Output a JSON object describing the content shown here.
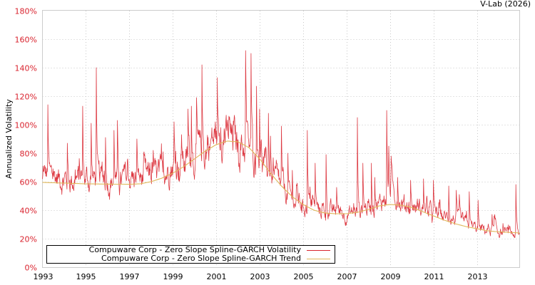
{
  "credit": "V-Lab (2026)",
  "chart_data": {
    "type": "line",
    "title": "",
    "xlabel": "",
    "ylabel": "Annualized Volatility",
    "xlim": [
      1993.0,
      2014.97
    ],
    "ylim": [
      0,
      180
    ],
    "grid": true,
    "legend_position": "lower-left",
    "x_ticks": [
      "1993",
      "1995",
      "1997",
      "1999",
      "2001",
      "2003",
      "2005",
      "2007",
      "2009",
      "2011",
      "2013"
    ],
    "y_ticks": [
      "0%",
      "20%",
      "40%",
      "60%",
      "80%",
      "100%",
      "120%",
      "140%",
      "160%",
      "180%"
    ],
    "colors": {
      "volatility": "#d9232e",
      "trend": "#e0b85a",
      "ytick": "#d9232e",
      "grid": "#c8c8c8",
      "axis": "#cccccc"
    },
    "series": [
      {
        "name": "Compuware Corp - Zero Slope Spline-GARCH Volatility",
        "baseline": [
          [
            1993.0,
            58
          ],
          [
            1993.5,
            56
          ],
          [
            1994.0,
            55
          ],
          [
            1994.5,
            54
          ],
          [
            1995.0,
            55
          ],
          [
            1995.5,
            55
          ],
          [
            1996.0,
            54
          ],
          [
            1996.5,
            54
          ],
          [
            1997.0,
            54
          ],
          [
            1997.5,
            55
          ],
          [
            1998.0,
            56
          ],
          [
            1998.5,
            58
          ],
          [
            1999.0,
            63
          ],
          [
            1999.5,
            66
          ],
          [
            2000.0,
            70
          ],
          [
            2000.5,
            73
          ],
          [
            2001.0,
            80
          ],
          [
            2001.5,
            80
          ],
          [
            2002.0,
            76
          ],
          [
            2002.5,
            73
          ],
          [
            2003.0,
            70
          ],
          [
            2003.5,
            55
          ],
          [
            2004.0,
            48
          ],
          [
            2004.5,
            42
          ],
          [
            2005.0,
            39
          ],
          [
            2005.5,
            37
          ],
          [
            2006.0,
            35
          ],
          [
            2006.5,
            34
          ],
          [
            2007.0,
            33
          ],
          [
            2007.5,
            34
          ],
          [
            2008.0,
            38
          ],
          [
            2008.5,
            39
          ],
          [
            2009.0,
            47
          ],
          [
            2009.5,
            40
          ],
          [
            2010.0,
            38
          ],
          [
            2010.5,
            36
          ],
          [
            2011.0,
            33
          ],
          [
            2011.5,
            31
          ],
          [
            2012.0,
            30
          ],
          [
            2012.5,
            27
          ],
          [
            2013.0,
            24
          ],
          [
            2013.5,
            23
          ],
          [
            2014.0,
            22
          ],
          [
            2014.5,
            21
          ],
          [
            2014.97,
            19.5
          ]
        ],
        "spikes": [
          [
            1993.25,
            114
          ],
          [
            1993.03,
            71
          ],
          [
            1994.15,
            87
          ],
          [
            1994.85,
            113
          ],
          [
            1995.25,
            101
          ],
          [
            1995.48,
            140
          ],
          [
            1995.9,
            91
          ],
          [
            1996.3,
            96
          ],
          [
            1996.45,
            103
          ],
          [
            1997.35,
            90
          ],
          [
            1998.1,
            82
          ],
          [
            1998.55,
            81
          ],
          [
            1999.05,
            102
          ],
          [
            1999.4,
            93
          ],
          [
            1999.7,
            111
          ],
          [
            1999.85,
            113
          ],
          [
            2000.1,
            119
          ],
          [
            2000.35,
            142
          ],
          [
            2000.95,
            102
          ],
          [
            2001.05,
            133
          ],
          [
            2001.2,
            98
          ],
          [
            2001.55,
            92
          ],
          [
            2002.35,
            152
          ],
          [
            2002.6,
            150
          ],
          [
            2002.85,
            127
          ],
          [
            2003.0,
            111
          ],
          [
            2003.4,
            108
          ],
          [
            2003.5,
            92
          ],
          [
            2004.0,
            99
          ],
          [
            2004.3,
            80
          ],
          [
            2004.5,
            68
          ],
          [
            2005.2,
            96
          ],
          [
            2005.55,
            73
          ],
          [
            2006.05,
            79
          ],
          [
            2006.55,
            56
          ],
          [
            2007.5,
            105
          ],
          [
            2007.75,
            73
          ],
          [
            2008.15,
            73
          ],
          [
            2008.3,
            63
          ],
          [
            2008.85,
            110
          ],
          [
            2008.95,
            85
          ],
          [
            2009.05,
            78
          ],
          [
            2009.35,
            63
          ],
          [
            2009.95,
            61
          ],
          [
            2010.55,
            62
          ],
          [
            2011.0,
            61
          ],
          [
            2011.7,
            57
          ],
          [
            2012.05,
            54
          ],
          [
            2012.2,
            51
          ],
          [
            2012.65,
            53
          ],
          [
            2013.05,
            47
          ],
          [
            2013.7,
            37
          ],
          [
            2013.8,
            36
          ],
          [
            2014.8,
            58
          ],
          [
            2014.3,
            28
          ]
        ]
      },
      {
        "name": "Compuware Corp - Zero Slope Spline-GARCH Trend",
        "points": [
          [
            1993.0,
            59.5
          ],
          [
            1994.0,
            59.0
          ],
          [
            1995.0,
            58.5
          ],
          [
            1996.0,
            58.3
          ],
          [
            1997.0,
            58.2
          ],
          [
            1997.5,
            58.5
          ],
          [
            1998.0,
            60.0
          ],
          [
            1998.5,
            62.5
          ],
          [
            1999.0,
            66.0
          ],
          [
            1999.5,
            70.5
          ],
          [
            2000.0,
            76.0
          ],
          [
            2000.5,
            81.5
          ],
          [
            2001.0,
            86.0
          ],
          [
            2001.5,
            88.5
          ],
          [
            2002.0,
            88.0
          ],
          [
            2002.5,
            84.0
          ],
          [
            2003.0,
            76.0
          ],
          [
            2003.5,
            66.0
          ],
          [
            2004.0,
            57.0
          ],
          [
            2004.5,
            49.5
          ],
          [
            2005.0,
            44.0
          ],
          [
            2005.5,
            40.0
          ],
          [
            2006.0,
            38.0
          ],
          [
            2006.5,
            37.5
          ],
          [
            2007.0,
            37.5
          ],
          [
            2007.5,
            38.5
          ],
          [
            2008.0,
            40.5
          ],
          [
            2008.5,
            43.0
          ],
          [
            2009.0,
            44.0
          ],
          [
            2009.5,
            43.5
          ],
          [
            2010.0,
            42.0
          ],
          [
            2010.5,
            39.0
          ],
          [
            2011.0,
            36.0
          ],
          [
            2011.5,
            33.0
          ],
          [
            2012.0,
            30.5
          ],
          [
            2012.5,
            28.5
          ],
          [
            2013.0,
            27.0
          ],
          [
            2013.5,
            25.5
          ],
          [
            2014.0,
            24.8
          ],
          [
            2014.97,
            24.0
          ]
        ]
      }
    ]
  },
  "legend": {
    "items": [
      {
        "label": "Compuware Corp - Zero Slope Spline-GARCH Volatility",
        "color": "#d9232e"
      },
      {
        "label": "Compuware Corp - Zero Slope Spline-GARCH Trend",
        "color": "#e0b85a"
      }
    ]
  }
}
